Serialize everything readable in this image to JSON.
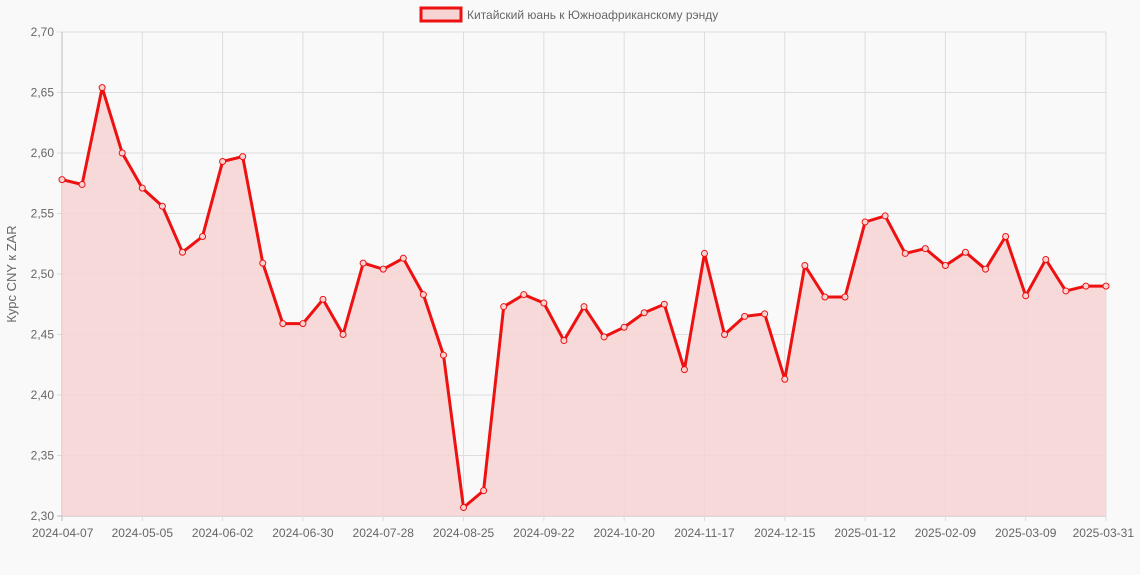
{
  "chart_data": {
    "type": "area",
    "title": "",
    "legend": {
      "label": "Китайский юань к Южноафриканскому рэнду",
      "placement": "top"
    },
    "ylabel": "Курс CNY к ZAR",
    "xlabel": "",
    "ylim": [
      2.3,
      2.7
    ],
    "yticks": [
      "2,30",
      "2,35",
      "2,40",
      "2,45",
      "2,50",
      "2,55",
      "2,60",
      "2,65",
      "2,70"
    ],
    "xtick_labels": [
      "2024-04-07",
      "2024-05-05",
      "2024-06-02",
      "2024-06-30",
      "2024-07-28",
      "2024-08-25",
      "2024-09-22",
      "2024-10-20",
      "2024-11-17",
      "2024-12-15",
      "2025-01-12",
      "2025-02-09",
      "2025-03-09",
      "2025-03-31"
    ],
    "grid": true,
    "colors": {
      "line": "#ee1111",
      "fill": "#f7d4d4",
      "grid": "#dddddd"
    },
    "values": [
      2.578,
      2.574,
      2.654,
      2.6,
      2.571,
      2.556,
      2.518,
      2.531,
      2.593,
      2.597,
      2.509,
      2.459,
      2.459,
      2.479,
      2.45,
      2.509,
      2.504,
      2.513,
      2.483,
      2.433,
      2.307,
      2.321,
      2.473,
      2.483,
      2.476,
      2.445,
      2.473,
      2.448,
      2.456,
      2.468,
      2.475,
      2.421,
      2.517,
      2.45,
      2.465,
      2.467,
      2.413,
      2.507,
      2.481,
      2.481,
      2.543,
      2.548,
      2.517,
      2.521,
      2.507,
      2.518,
      2.504,
      2.531,
      2.482,
      2.512,
      2.486,
      2.49,
      2.49
    ]
  }
}
